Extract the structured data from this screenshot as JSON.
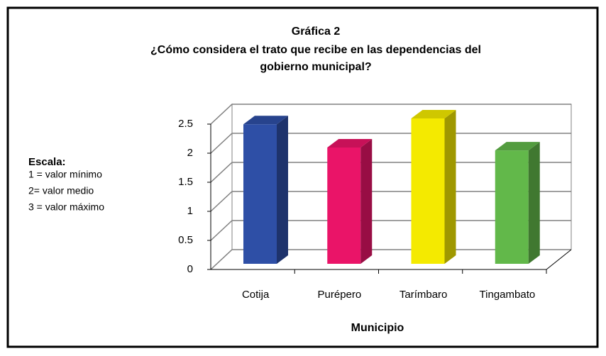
{
  "chart_data": {
    "type": "bar3d",
    "title": "Gráfica 2",
    "subtitle": [
      "¿Cómo considera el trato que recibe en las dependencias del",
      "gobierno municipal?"
    ],
    "annotation": {
      "heading": "Escala:",
      "lines": [
        "1 = valor mínimo",
        "2=  valor medio",
        "3 = valor máximo"
      ]
    },
    "x_label": "Municipio",
    "categories": [
      "Cotija",
      "Purépero",
      "Tarímbaro",
      "Tingambato"
    ],
    "values": [
      2.4,
      2.0,
      2.5,
      1.95
    ],
    "colors": [
      "#2e4fa6",
      "#ea1468",
      "#f4ea00",
      "#62b84a"
    ],
    "ylim": [
      0,
      2.5
    ],
    "yticks": [
      0,
      0.5,
      1,
      1.5,
      2,
      2.5
    ],
    "grid": true
  }
}
